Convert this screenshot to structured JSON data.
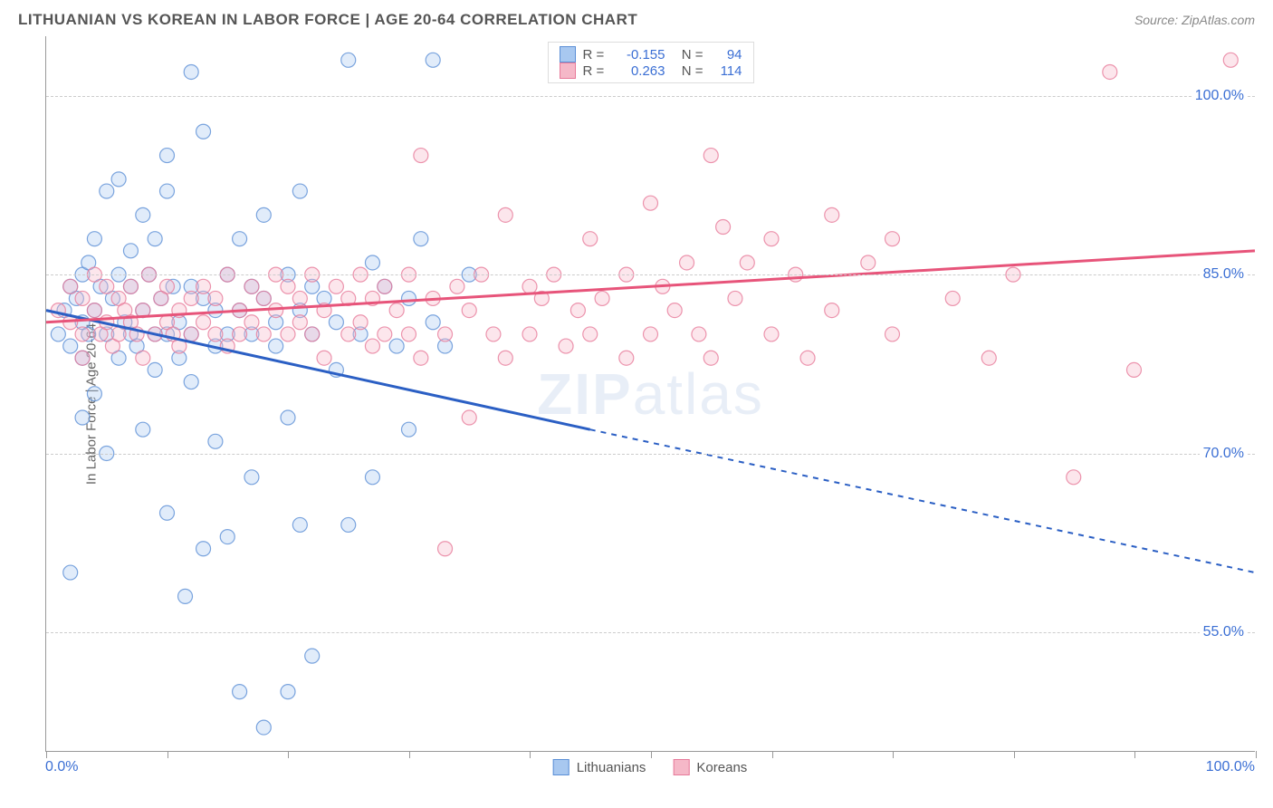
{
  "title": "LITHUANIAN VS KOREAN IN LABOR FORCE | AGE 20-64 CORRELATION CHART",
  "source": "Source: ZipAtlas.com",
  "y_axis_title": "In Labor Force | Age 20-64",
  "watermark": {
    "bold": "ZIP",
    "rest": "atlas"
  },
  "chart": {
    "type": "scatter",
    "background_color": "#ffffff",
    "grid_color": "#cccccc",
    "axis_color": "#999999",
    "xlim": [
      0,
      100
    ],
    "ylim": [
      45,
      105
    ],
    "x_ticks": [
      0,
      10,
      20,
      30,
      40,
      50,
      60,
      70,
      80,
      90,
      100
    ],
    "x_tick_labels_shown": {
      "left": "0.0%",
      "right": "100.0%"
    },
    "y_gridlines": [
      55,
      70,
      85,
      100
    ],
    "y_tick_labels": [
      "55.0%",
      "70.0%",
      "85.0%",
      "100.0%"
    ],
    "y_label_color": "#3b6fd4",
    "marker_radius": 8,
    "series": [
      {
        "name": "Lithuanians",
        "color_fill": "#a8c8f0",
        "color_stroke": "#5b8fd6",
        "line_color": "#2b5fc4",
        "R": "-0.155",
        "N": "94",
        "trend": {
          "x1": 0,
          "y1": 82,
          "x2_solid": 45,
          "y2_solid": 72,
          "x2": 100,
          "y2": 60
        },
        "points": [
          [
            1,
            80
          ],
          [
            1.5,
            82
          ],
          [
            2,
            84
          ],
          [
            2,
            79
          ],
          [
            2,
            60
          ],
          [
            2.5,
            83
          ],
          [
            3,
            81
          ],
          [
            3,
            85
          ],
          [
            3,
            73
          ],
          [
            3,
            78
          ],
          [
            3.5,
            86
          ],
          [
            3.5,
            80
          ],
          [
            4,
            82
          ],
          [
            4,
            88
          ],
          [
            4,
            75
          ],
          [
            4.5,
            84
          ],
          [
            5,
            92
          ],
          [
            5,
            80
          ],
          [
            5,
            70
          ],
          [
            5.5,
            83
          ],
          [
            6,
            85
          ],
          [
            6,
            78
          ],
          [
            6,
            93
          ],
          [
            6.5,
            81
          ],
          [
            7,
            87
          ],
          [
            7,
            80
          ],
          [
            7,
            84
          ],
          [
            7.5,
            79
          ],
          [
            8,
            82
          ],
          [
            8,
            90
          ],
          [
            8,
            72
          ],
          [
            8.5,
            85
          ],
          [
            9,
            80
          ],
          [
            9,
            77
          ],
          [
            9,
            88
          ],
          [
            9.5,
            83
          ],
          [
            10,
            95
          ],
          [
            10,
            80
          ],
          [
            10,
            92
          ],
          [
            10,
            65
          ],
          [
            10.5,
            84
          ],
          [
            11,
            81
          ],
          [
            11,
            78
          ],
          [
            11.5,
            58
          ],
          [
            12,
            102
          ],
          [
            12,
            84
          ],
          [
            12,
            80
          ],
          [
            12,
            76
          ],
          [
            13,
            83
          ],
          [
            13,
            62
          ],
          [
            13,
            97
          ],
          [
            14,
            82
          ],
          [
            14,
            79
          ],
          [
            14,
            71
          ],
          [
            15,
            85
          ],
          [
            15,
            80
          ],
          [
            15,
            63
          ],
          [
            16,
            88
          ],
          [
            16,
            82
          ],
          [
            16,
            50
          ],
          [
            17,
            84
          ],
          [
            17,
            80
          ],
          [
            17,
            68
          ],
          [
            18,
            90
          ],
          [
            18,
            83
          ],
          [
            18,
            47
          ],
          [
            19,
            81
          ],
          [
            19,
            79
          ],
          [
            20,
            85
          ],
          [
            20,
            73
          ],
          [
            20,
            50
          ],
          [
            21,
            92
          ],
          [
            21,
            82
          ],
          [
            21,
            64
          ],
          [
            22,
            84
          ],
          [
            22,
            80
          ],
          [
            22,
            53
          ],
          [
            23,
            83
          ],
          [
            24,
            81
          ],
          [
            24,
            77
          ],
          [
            25,
            64
          ],
          [
            25,
            103
          ],
          [
            26,
            80
          ],
          [
            27,
            86
          ],
          [
            27,
            68
          ],
          [
            28,
            84
          ],
          [
            29,
            79
          ],
          [
            30,
            83
          ],
          [
            30,
            72
          ],
          [
            31,
            88
          ],
          [
            32,
            81
          ],
          [
            32,
            103
          ],
          [
            33,
            79
          ],
          [
            35,
            85
          ]
        ]
      },
      {
        "name": "Koreans",
        "color_fill": "#f5b8c8",
        "color_stroke": "#e77a9a",
        "line_color": "#e7547a",
        "R": "0.263",
        "N": "114",
        "trend": {
          "x1": 0,
          "y1": 81,
          "x2_solid": 100,
          "y2_solid": 87,
          "x2": 100,
          "y2": 87
        },
        "points": [
          [
            1,
            82
          ],
          [
            2,
            81
          ],
          [
            2,
            84
          ],
          [
            3,
            80
          ],
          [
            3,
            83
          ],
          [
            3,
            78
          ],
          [
            4,
            82
          ],
          [
            4,
            85
          ],
          [
            4.5,
            80
          ],
          [
            5,
            84
          ],
          [
            5,
            81
          ],
          [
            5.5,
            79
          ],
          [
            6,
            83
          ],
          [
            6,
            80
          ],
          [
            6.5,
            82
          ],
          [
            7,
            81
          ],
          [
            7,
            84
          ],
          [
            7.5,
            80
          ],
          [
            8,
            78
          ],
          [
            8,
            82
          ],
          [
            8.5,
            85
          ],
          [
            9,
            80
          ],
          [
            9.5,
            83
          ],
          [
            10,
            81
          ],
          [
            10,
            84
          ],
          [
            10.5,
            80
          ],
          [
            11,
            82
          ],
          [
            11,
            79
          ],
          [
            12,
            83
          ],
          [
            12,
            80
          ],
          [
            13,
            84
          ],
          [
            13,
            81
          ],
          [
            14,
            80
          ],
          [
            14,
            83
          ],
          [
            15,
            85
          ],
          [
            15,
            79
          ],
          [
            16,
            82
          ],
          [
            16,
            80
          ],
          [
            17,
            84
          ],
          [
            17,
            81
          ],
          [
            18,
            83
          ],
          [
            18,
            80
          ],
          [
            19,
            85
          ],
          [
            19,
            82
          ],
          [
            20,
            80
          ],
          [
            20,
            84
          ],
          [
            21,
            81
          ],
          [
            21,
            83
          ],
          [
            22,
            80
          ],
          [
            22,
            85
          ],
          [
            23,
            78
          ],
          [
            23,
            82
          ],
          [
            24,
            84
          ],
          [
            25,
            80
          ],
          [
            25,
            83
          ],
          [
            26,
            81
          ],
          [
            26,
            85
          ],
          [
            27,
            79
          ],
          [
            27,
            83
          ],
          [
            28,
            80
          ],
          [
            28,
            84
          ],
          [
            29,
            82
          ],
          [
            30,
            85
          ],
          [
            30,
            80
          ],
          [
            31,
            95
          ],
          [
            31,
            78
          ],
          [
            32,
            83
          ],
          [
            33,
            80
          ],
          [
            33,
            62
          ],
          [
            34,
            84
          ],
          [
            35,
            82
          ],
          [
            35,
            73
          ],
          [
            36,
            85
          ],
          [
            37,
            80
          ],
          [
            38,
            90
          ],
          [
            38,
            78
          ],
          [
            40,
            84
          ],
          [
            40,
            80
          ],
          [
            41,
            83
          ],
          [
            42,
            85
          ],
          [
            43,
            79
          ],
          [
            44,
            82
          ],
          [
            45,
            88
          ],
          [
            45,
            80
          ],
          [
            46,
            83
          ],
          [
            48,
            85
          ],
          [
            48,
            78
          ],
          [
            50,
            91
          ],
          [
            50,
            80
          ],
          [
            51,
            84
          ],
          [
            52,
            82
          ],
          [
            53,
            86
          ],
          [
            54,
            80
          ],
          [
            55,
            95
          ],
          [
            55,
            78
          ],
          [
            56,
            89
          ],
          [
            57,
            83
          ],
          [
            58,
            86
          ],
          [
            60,
            80
          ],
          [
            60,
            88
          ],
          [
            62,
            85
          ],
          [
            63,
            78
          ],
          [
            65,
            90
          ],
          [
            65,
            82
          ],
          [
            68,
            86
          ],
          [
            70,
            80
          ],
          [
            70,
            88
          ],
          [
            75,
            83
          ],
          [
            78,
            78
          ],
          [
            80,
            85
          ],
          [
            85,
            68
          ],
          [
            88,
            102
          ],
          [
            90,
            77
          ],
          [
            98,
            103
          ]
        ]
      }
    ]
  },
  "bottom_legend": [
    {
      "label": "Lithuanians",
      "fill": "#a8c8f0",
      "stroke": "#5b8fd6"
    },
    {
      "label": "Koreans",
      "fill": "#f5b8c8",
      "stroke": "#e77a9a"
    }
  ]
}
